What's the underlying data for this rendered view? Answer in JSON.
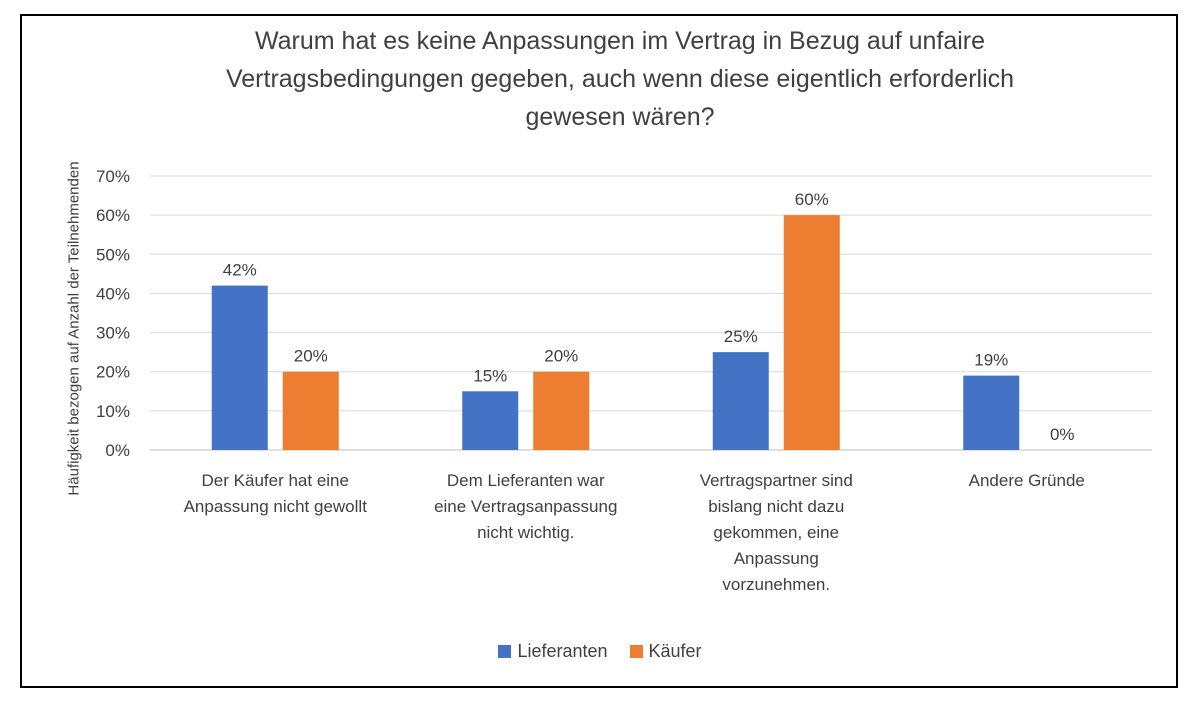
{
  "chart_data": {
    "type": "bar",
    "title": "Warum hat es keine Anpassungen im Vertrag in Bezug auf unfaire Vertragsbedingungen gegeben, auch wenn diese eigentlich erforderlich gewesen wären?",
    "title_lines": [
      "Warum hat es keine Anpassungen im Vertrag in Bezug auf unfaire",
      "Vertragsbedingungen gegeben, auch wenn diese eigentlich erforderlich",
      "gewesen wären?"
    ],
    "ylabel": "Häufigkeit bezogen auf Anzahl der Teilnehmenden",
    "xlabel": "",
    "ylim": [
      0,
      70
    ],
    "yticks": [
      "0%",
      "10%",
      "20%",
      "30%",
      "40%",
      "50%",
      "60%",
      "70%"
    ],
    "grid": true,
    "legend_position": "bottom",
    "categories": [
      "Der Käufer hat eine Anpassung nicht gewollt",
      "Dem Lieferanten war eine Vertragsanpassung nicht wichtig.",
      "Vertragspartner sind bislang nicht dazu gekommen, eine Anpassung vorzunehmen.",
      "Andere Gründe"
    ],
    "category_lines": [
      [
        "Der Käufer hat eine",
        "Anpassung nicht gewollt"
      ],
      [
        "Dem Lieferanten war",
        "eine Vertragsanpassung",
        "nicht wichtig."
      ],
      [
        "Vertragspartner sind",
        "bislang nicht dazu",
        "gekommen, eine",
        "Anpassung",
        "vorzunehmen."
      ],
      [
        "Andere Gründe"
      ]
    ],
    "series": [
      {
        "name": "Lieferanten",
        "color": "#4472C4",
        "values": [
          42,
          15,
          25,
          19
        ],
        "labels": [
          "42%",
          "15%",
          "25%",
          "19%"
        ]
      },
      {
        "name": "Käufer",
        "color": "#ED7D31",
        "values": [
          20,
          20,
          60,
          0
        ],
        "labels": [
          "20%",
          "20%",
          "60%",
          "0%"
        ]
      }
    ]
  }
}
